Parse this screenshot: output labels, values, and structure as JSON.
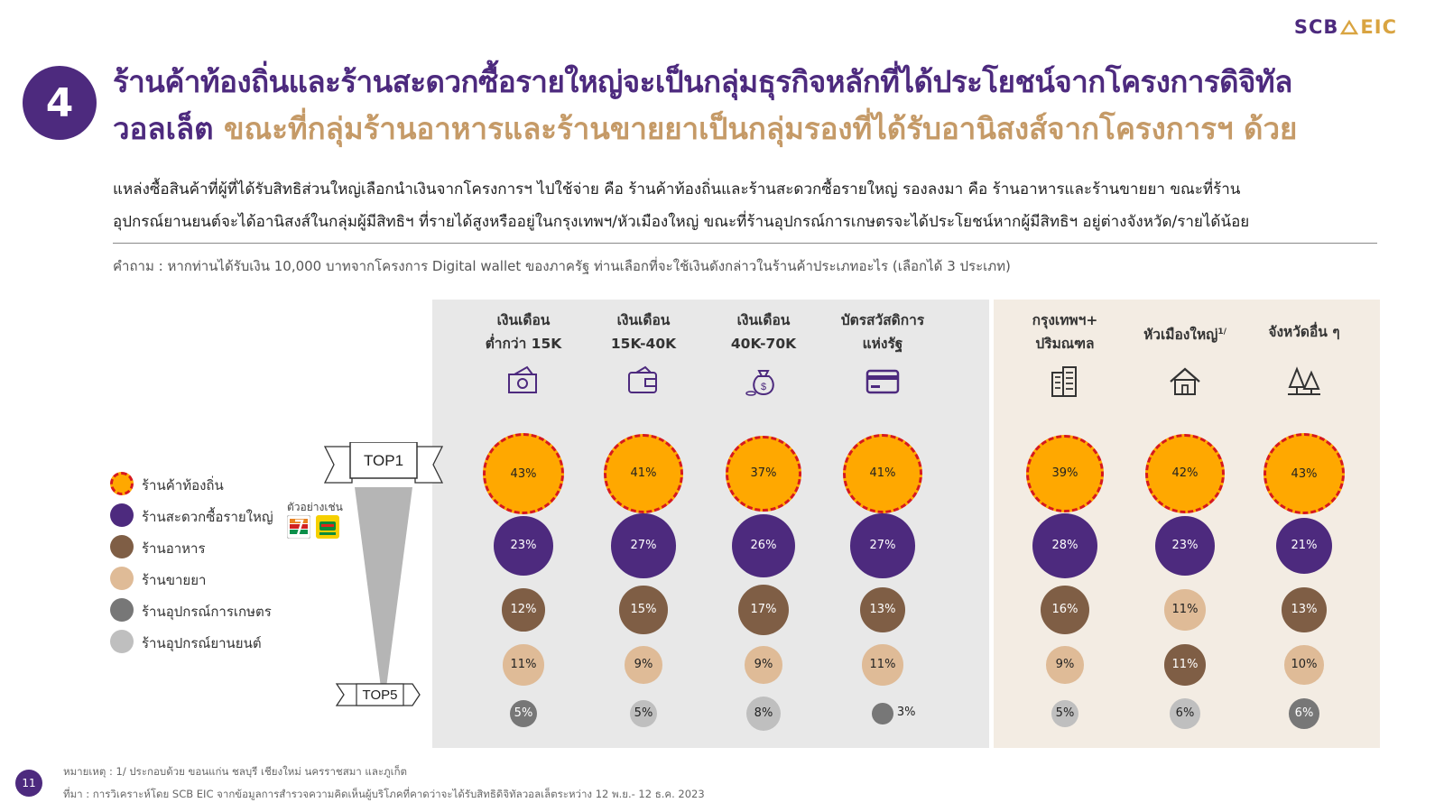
{
  "logo": {
    "text_a": "SCB",
    "text_b": "EIC"
  },
  "section_number": "4",
  "title_line1": "ร้านค้าท้องถิ่นและร้านสะดวกซื้อรายใหญ่จะเป็นกลุ่มธุรกิจหลักที่ได้ประโยชน์จากโครงการดิจิทัล",
  "title_line2_part1": "วอลเล็ต",
  "title_line2_part2": "ขณะที่กลุ่มร้านอาหารและร้านขายยาเป็นกลุ่มรองที่ได้รับอานิสงส์จากโครงการฯ ด้วย",
  "subtitle_line1": "แหล่งซื้อสินค้าที่ผู้ที่ได้รับสิทธิส่วนใหญ่เลือกนำเงินจากโครงการฯ ไปใช้จ่าย คือ ร้านค้าท้องถิ่นและร้านสะดวกซื้อรายใหญ่ รองลงมา คือ ร้านอาหารและร้านขายยา ขณะที่ร้าน",
  "subtitle_line2": "อุปกรณ์ยานยนต์จะได้อานิสงส์ในกลุ่มผู้มีสิทธิฯ ที่รายได้สูงหรืออยู่ในกรุงเทพฯ/หัวเมืองใหญ่ ขณะที่ร้านอุปกรณ์การเกษตรจะได้ประโยชน์หากผู้มีสิทธิฯ อยู่ต่างจังหวัด/รายได้น้อย",
  "question": "คำถาม : หากท่านได้รับเงิน 10,000 บาทจากโครงการ Digital wallet ของภาครัฐ ท่านเลือกที่จะใช้เงินดังกล่าวในร้านค้าประเภทอะไร (เลือกได้ 3 ประเภท)",
  "rank_top": "TOP1",
  "rank_bottom": "TOP5",
  "example_label": "ตัวอย่างเช่น",
  "footnote": "หมายเหตุ : 1/ ประกอบด้วย ขอนแก่น ชลบุรี เชียงใหม่ นครราชสมา และภูเก็ต",
  "source": "ที่มา : การวิเคราะห์โดย SCB EIC จากข้อมูลการสำรวจความคิดเห็นผู้บริโภคที่คาดว่าจะได้รับสิทธิดิจิทัลวอลเล็ตระหว่าง 12 พ.ย.- 12 ธ.ค. 2023",
  "page_number": "11",
  "colors": {
    "purple": "#4d2a7e",
    "gold": "#c59a67",
    "orange": "#ffa800",
    "red_dash": "#d7191c",
    "brown": "#7f5e45",
    "tan": "#dfbb97",
    "grey": "#777777",
    "lightgrey": "#bfbfbf"
  },
  "chart_data": {
    "type": "bubble-matrix",
    "groups": [
      {
        "name": "income",
        "columns": [
          "col1",
          "col2",
          "col3",
          "col4"
        ]
      },
      {
        "name": "region",
        "columns": [
          "col5",
          "col6",
          "col7"
        ]
      }
    ],
    "columns": [
      {
        "id": "col1",
        "line1": "เงินเดือน",
        "line2": "ต่ำกว่า 15K",
        "sup": "",
        "icon": "cash-icon"
      },
      {
        "id": "col2",
        "line1": "เงินเดือน",
        "line2": "15K-40K",
        "sup": "",
        "icon": "wallet-icon"
      },
      {
        "id": "col3",
        "line1": "เงินเดือน",
        "line2": "40K-70K",
        "sup": "",
        "icon": "money-bag-icon"
      },
      {
        "id": "col4",
        "line1": "บัตรสวัสดิการ",
        "line2": "แห่งรัฐ",
        "sup": "",
        "icon": "card-icon"
      },
      {
        "id": "col5",
        "line1": "กรุงเทพฯ+",
        "line2": "ปริมณฑล",
        "sup": "",
        "icon": "building-icon"
      },
      {
        "id": "col6",
        "line1": "หัวเมืองใหญ่",
        "line2": "",
        "sup": "1/",
        "icon": "house-icon"
      },
      {
        "id": "col7",
        "line1": "จังหวัดอื่น ๆ",
        "line2": "",
        "sup": "",
        "icon": "trees-icon"
      }
    ],
    "categories": [
      {
        "key": "local",
        "label": "ร้านค้าท้องถิ่น",
        "color": "#ffa800",
        "dashed": true
      },
      {
        "key": "convenience",
        "label": "ร้านสะดวกซื้อรายใหญ่",
        "color": "#4d2a7e",
        "dashed": false
      },
      {
        "key": "food",
        "label": "ร้านอาหาร",
        "color": "#7f5e45",
        "dashed": false
      },
      {
        "key": "pharmacy",
        "label": "ร้านขายยา",
        "color": "#dfbb97",
        "dashed": false
      },
      {
        "key": "agri",
        "label": "ร้านอุปกรณ์การเกษตร",
        "color": "#777777",
        "dashed": false
      },
      {
        "key": "auto",
        "label": "ร้านอุปกรณ์ยานยนต์",
        "color": "#bfbfbf",
        "dashed": false
      }
    ],
    "values": [
      [
        {
          "cat": "local",
          "v": 43
        },
        {
          "cat": "convenience",
          "v": 23
        },
        {
          "cat": "food",
          "v": 12
        },
        {
          "cat": "pharmacy",
          "v": 11
        },
        {
          "cat": "agri",
          "v": 5
        }
      ],
      [
        {
          "cat": "local",
          "v": 41
        },
        {
          "cat": "convenience",
          "v": 27
        },
        {
          "cat": "food",
          "v": 15
        },
        {
          "cat": "pharmacy",
          "v": 9
        },
        {
          "cat": "auto",
          "v": 5
        }
      ],
      [
        {
          "cat": "local",
          "v": 37
        },
        {
          "cat": "convenience",
          "v": 26
        },
        {
          "cat": "food",
          "v": 17
        },
        {
          "cat": "pharmacy",
          "v": 9
        },
        {
          "cat": "auto",
          "v": 8
        }
      ],
      [
        {
          "cat": "local",
          "v": 41
        },
        {
          "cat": "convenience",
          "v": 27
        },
        {
          "cat": "food",
          "v": 13
        },
        {
          "cat": "pharmacy",
          "v": 11
        },
        {
          "cat": "agri",
          "v": 3
        }
      ],
      [
        {
          "cat": "local",
          "v": 39
        },
        {
          "cat": "convenience",
          "v": 28
        },
        {
          "cat": "food",
          "v": 16
        },
        {
          "cat": "pharmacy",
          "v": 9
        },
        {
          "cat": "auto",
          "v": 5
        }
      ],
      [
        {
          "cat": "local",
          "v": 42
        },
        {
          "cat": "convenience",
          "v": 23
        },
        {
          "cat": "pharmacy",
          "v": 11
        },
        {
          "cat": "food",
          "v": 11
        },
        {
          "cat": "auto",
          "v": 6
        }
      ],
      [
        {
          "cat": "local",
          "v": 43
        },
        {
          "cat": "convenience",
          "v": 21
        },
        {
          "cat": "food",
          "v": 13
        },
        {
          "cat": "pharmacy",
          "v": 10
        },
        {
          "cat": "agri",
          "v": 6
        }
      ]
    ],
    "value_suffix": "%"
  }
}
